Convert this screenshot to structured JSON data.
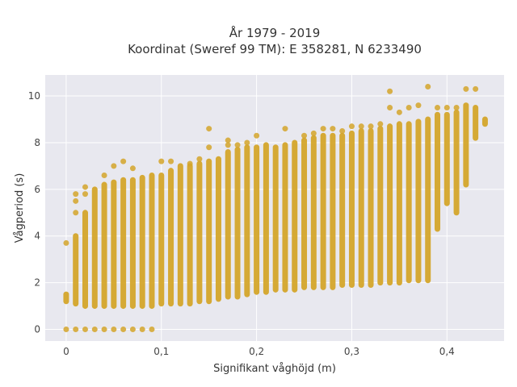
{
  "chart_data": {
    "type": "scatter",
    "title_line1": "År 1979 - 2019",
    "title_line2": "Koordinat (Sweref 99 TM): E 358281, N 6233490",
    "xlabel": "Signifikant våghöjd (m)",
    "ylabel": "Vågperiod (s)",
    "xlim": [
      -0.022,
      0.46
    ],
    "ylim": [
      -0.5,
      10.9
    ],
    "xticks": [
      0,
      0.1,
      0.2,
      0.3,
      0.4
    ],
    "xtick_labels": [
      "0",
      "0,1",
      "0,2",
      "0,3",
      "0,4"
    ],
    "yticks": [
      0,
      2,
      4,
      6,
      8,
      10
    ],
    "ytick_labels": [
      "0",
      "2",
      "4",
      "6",
      "8",
      "10"
    ],
    "grid": true,
    "marker_color": "#d4a52a",
    "plot_background": "#e8e8ef",
    "columns": [
      {
        "x": 0.0,
        "y_min": 1.2,
        "y_max": 1.5,
        "outliers": [
          0,
          3.7
        ]
      },
      {
        "x": 0.01,
        "y_min": 1.1,
        "y_max": 4.0,
        "outliers": [
          0,
          5.0,
          5.5,
          5.8
        ]
      },
      {
        "x": 0.02,
        "y_min": 1.0,
        "y_max": 5.0,
        "outliers": [
          0,
          5.8,
          6.1
        ]
      },
      {
        "x": 0.03,
        "y_min": 1.0,
        "y_max": 6.0,
        "outliers": [
          0
        ]
      },
      {
        "x": 0.04,
        "y_min": 1.0,
        "y_max": 6.2,
        "outliers": [
          0,
          6.6
        ]
      },
      {
        "x": 0.05,
        "y_min": 1.0,
        "y_max": 6.3,
        "outliers": [
          0,
          7.0
        ]
      },
      {
        "x": 0.06,
        "y_min": 1.0,
        "y_max": 6.4,
        "outliers": [
          0,
          7.2
        ]
      },
      {
        "x": 0.07,
        "y_min": 1.0,
        "y_max": 6.4,
        "outliers": [
          0,
          6.9
        ]
      },
      {
        "x": 0.08,
        "y_min": 1.0,
        "y_max": 6.5,
        "outliers": [
          0
        ]
      },
      {
        "x": 0.09,
        "y_min": 1.0,
        "y_max": 6.6,
        "outliers": [
          0
        ]
      },
      {
        "x": 0.1,
        "y_min": 1.1,
        "y_max": 6.6,
        "outliers": [
          7.2
        ]
      },
      {
        "x": 0.11,
        "y_min": 1.1,
        "y_max": 6.8,
        "outliers": [
          7.2
        ]
      },
      {
        "x": 0.12,
        "y_min": 1.1,
        "y_max": 7.0,
        "outliers": []
      },
      {
        "x": 0.13,
        "y_min": 1.1,
        "y_max": 7.0,
        "outliers": [
          7.1
        ]
      },
      {
        "x": 0.14,
        "y_min": 1.2,
        "y_max": 7.1,
        "outliers": [
          7.3
        ]
      },
      {
        "x": 0.15,
        "y_min": 1.2,
        "y_max": 7.2,
        "outliers": [
          7.8,
          8.6
        ]
      },
      {
        "x": 0.16,
        "y_min": 1.3,
        "y_max": 7.3,
        "outliers": []
      },
      {
        "x": 0.17,
        "y_min": 1.4,
        "y_max": 7.6,
        "outliers": [
          7.9,
          8.1
        ]
      },
      {
        "x": 0.18,
        "y_min": 1.4,
        "y_max": 7.7,
        "outliers": [
          7.9
        ]
      },
      {
        "x": 0.19,
        "y_min": 1.5,
        "y_max": 7.8,
        "outliers": [
          8.0
        ]
      },
      {
        "x": 0.2,
        "y_min": 1.6,
        "y_max": 7.8,
        "outliers": [
          8.3
        ]
      },
      {
        "x": 0.21,
        "y_min": 1.6,
        "y_max": 7.9,
        "outliers": []
      },
      {
        "x": 0.22,
        "y_min": 1.7,
        "y_max": 7.8,
        "outliers": []
      },
      {
        "x": 0.23,
        "y_min": 1.7,
        "y_max": 7.9,
        "outliers": [
          8.6
        ]
      },
      {
        "x": 0.24,
        "y_min": 1.7,
        "y_max": 8.0,
        "outliers": []
      },
      {
        "x": 0.25,
        "y_min": 1.8,
        "y_max": 8.1,
        "outliers": [
          8.3
        ]
      },
      {
        "x": 0.26,
        "y_min": 1.8,
        "y_max": 8.2,
        "outliers": [
          8.4
        ]
      },
      {
        "x": 0.27,
        "y_min": 1.8,
        "y_max": 8.3,
        "outliers": [
          8.6
        ]
      },
      {
        "x": 0.28,
        "y_min": 1.8,
        "y_max": 8.3,
        "outliers": [
          8.6
        ]
      },
      {
        "x": 0.29,
        "y_min": 1.9,
        "y_max": 8.3,
        "outliers": [
          8.5
        ]
      },
      {
        "x": 0.3,
        "y_min": 1.9,
        "y_max": 8.4,
        "outliers": [
          8.7
        ]
      },
      {
        "x": 0.31,
        "y_min": 1.9,
        "y_max": 8.5,
        "outliers": [
          8.7
        ]
      },
      {
        "x": 0.32,
        "y_min": 1.9,
        "y_max": 8.5,
        "outliers": [
          8.7
        ]
      },
      {
        "x": 0.33,
        "y_min": 2.0,
        "y_max": 8.6,
        "outliers": [
          8.8
        ]
      },
      {
        "x": 0.34,
        "y_min": 2.0,
        "y_max": 8.7,
        "outliers": [
          9.5,
          10.2
        ]
      },
      {
        "x": 0.35,
        "y_min": 2.0,
        "y_max": 8.8,
        "outliers": [
          9.3
        ]
      },
      {
        "x": 0.36,
        "y_min": 2.1,
        "y_max": 8.8,
        "outliers": [
          9.5
        ]
      },
      {
        "x": 0.37,
        "y_min": 2.1,
        "y_max": 8.9,
        "outliers": [
          9.6
        ]
      },
      {
        "x": 0.38,
        "y_min": 2.1,
        "y_max": 9.0,
        "outliers": [
          10.4
        ]
      },
      {
        "x": 0.39,
        "y_min": 4.3,
        "y_max": 9.2,
        "outliers": [
          9.5
        ]
      },
      {
        "x": 0.4,
        "y_min": 5.4,
        "y_max": 9.2,
        "outliers": [
          9.5
        ]
      },
      {
        "x": 0.41,
        "y_min": 5.0,
        "y_max": 9.3,
        "outliers": [
          9.5
        ]
      },
      {
        "x": 0.42,
        "y_min": 6.2,
        "y_max": 9.6,
        "outliers": [
          10.3
        ]
      },
      {
        "x": 0.43,
        "y_min": 8.2,
        "y_max": 9.5,
        "outliers": [
          10.3
        ]
      },
      {
        "x": 0.44,
        "y_min": 8.8,
        "y_max": 9.0,
        "outliers": []
      }
    ]
  }
}
